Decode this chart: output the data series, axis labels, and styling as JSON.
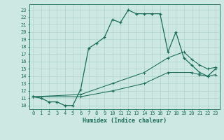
{
  "xlabel": "Humidex (Indice chaleur)",
  "xlim": [
    -0.5,
    23.5
  ],
  "ylim": [
    9.5,
    23.8
  ],
  "xticks": [
    0,
    1,
    2,
    3,
    4,
    5,
    6,
    7,
    8,
    9,
    10,
    11,
    12,
    13,
    14,
    15,
    16,
    17,
    18,
    19,
    20,
    21,
    22,
    23
  ],
  "yticks": [
    10,
    11,
    12,
    13,
    14,
    15,
    16,
    17,
    18,
    19,
    20,
    21,
    22,
    23
  ],
  "bg_color": "#cde8e2",
  "line_color": "#1a6b5a",
  "grid_color": "#aed4cc",
  "line1_x": [
    0,
    1,
    2,
    3,
    4,
    5,
    6,
    7,
    8,
    9,
    10,
    11,
    12,
    13,
    14,
    15,
    16,
    17,
    18,
    19,
    20,
    21,
    22,
    23
  ],
  "line1_y": [
    11.2,
    11.0,
    10.5,
    10.5,
    10.0,
    10.0,
    12.2,
    17.8,
    18.5,
    19.3,
    21.7,
    21.3,
    23.0,
    22.5,
    22.5,
    22.5,
    22.5,
    17.3,
    20.0,
    16.5,
    15.5,
    14.5,
    14.0,
    15.0
  ],
  "line2_x": [
    0,
    6,
    10,
    14,
    17,
    19,
    20,
    21,
    22,
    23
  ],
  "line2_y": [
    11.2,
    11.5,
    13.0,
    14.5,
    16.5,
    17.3,
    16.3,
    15.5,
    15.0,
    15.2
  ],
  "line3_x": [
    0,
    6,
    10,
    14,
    17,
    20,
    21,
    22,
    23
  ],
  "line3_y": [
    11.2,
    11.2,
    12.0,
    13.0,
    14.5,
    14.5,
    14.2,
    14.0,
    14.2
  ]
}
